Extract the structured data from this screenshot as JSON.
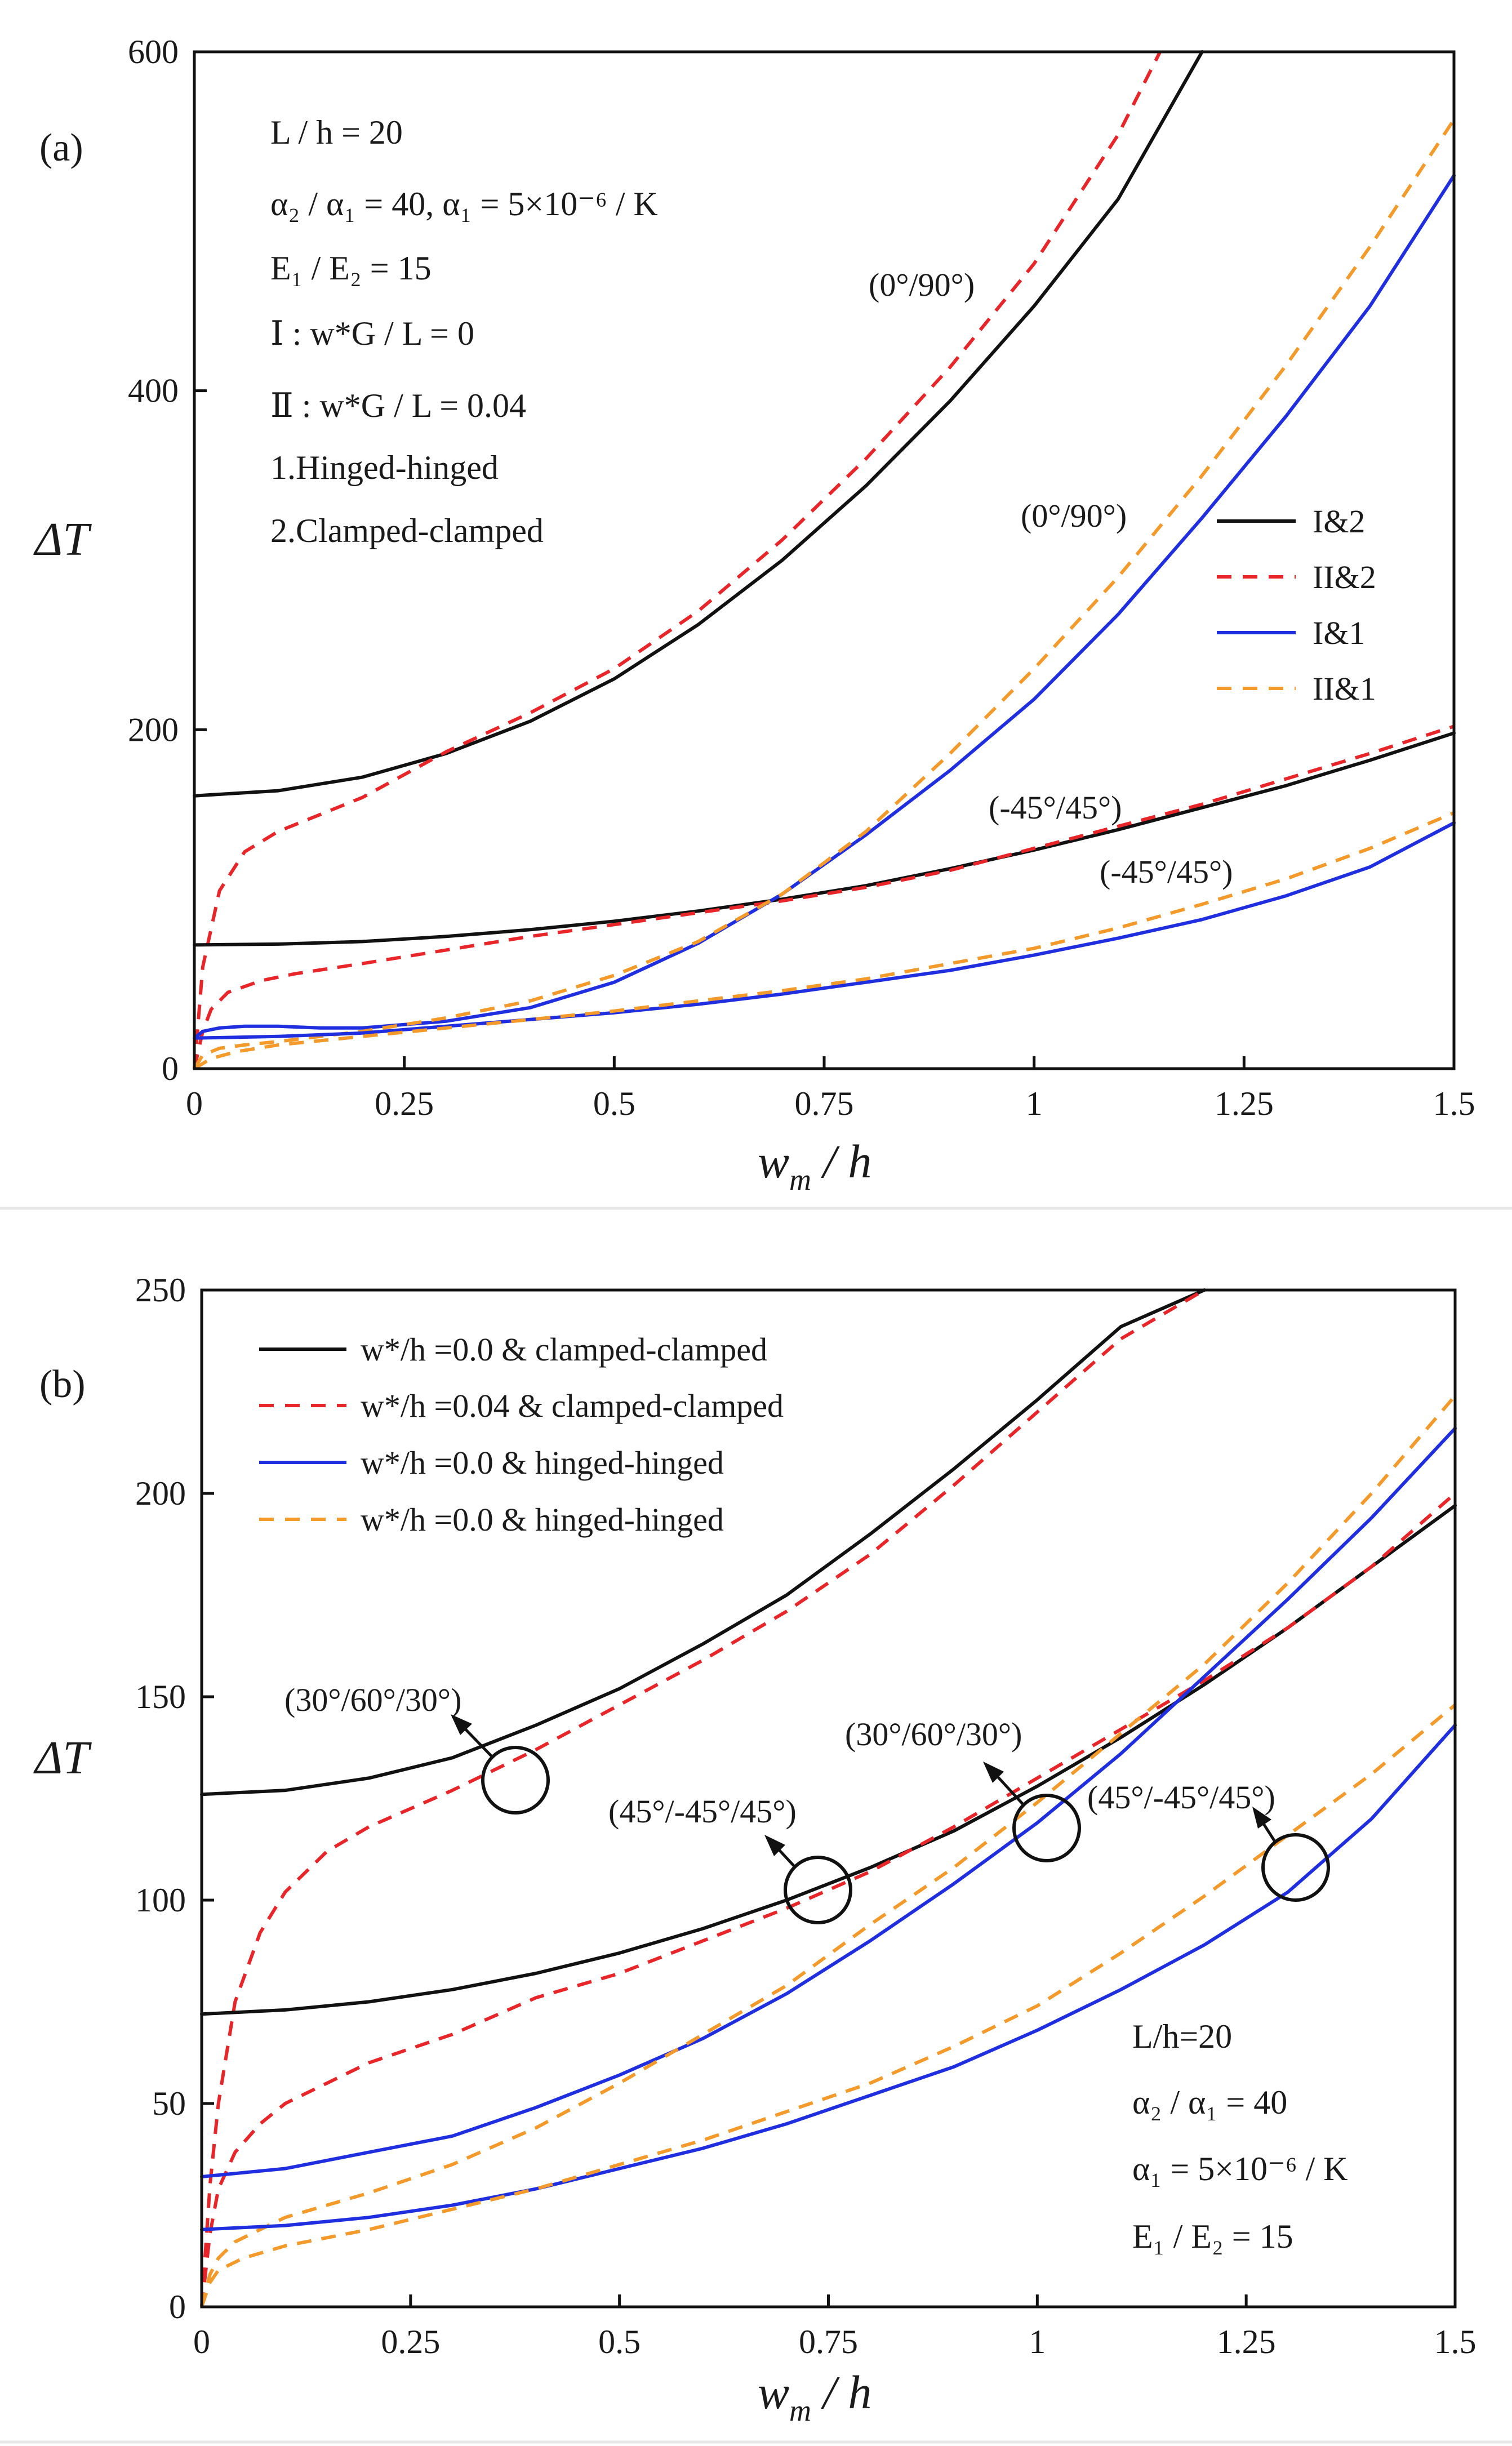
{
  "chart_data": [
    {
      "type": "line",
      "panel_label": "(a)",
      "xlabel": "w_m / h",
      "xlabel_main": "w",
      "xlabel_sub": "m",
      "xlabel_rest": " / h",
      "ylabel": "ΔT",
      "xlim": [
        0,
        1.5
      ],
      "ylim": [
        0,
        600
      ],
      "xticks": [
        0,
        0.25,
        0.5,
        0.75,
        1,
        1.25,
        1.5
      ],
      "xtick_labels": [
        "0",
        "0.25",
        "0.5",
        "0.75",
        "1",
        "1.25",
        "1.5"
      ],
      "yticks": [
        0,
        200,
        400,
        600
      ],
      "ytick_labels": [
        "0",
        "200",
        "400",
        "600"
      ],
      "info_lines": [
        "L / h = 20",
        "α₂ / α₁ = 40,  α₁ = 5×10⁻⁶ / K",
        "E₁ / E₂ = 15",
        "Ⅰ : w*G / L = 0",
        "Ⅱ : w*G / L = 0.04",
        "1.Hinged-hinged",
        "2.Clamped-clamped"
      ],
      "legend": [
        {
          "label": "I&2",
          "color": "#111111",
          "dash": "solid"
        },
        {
          "label": "II&2",
          "color": "#e8262a",
          "dash": "dashed"
        },
        {
          "label": "I&1",
          "color": "#1f2fe0",
          "dash": "solid"
        },
        {
          "label": "II&1",
          "color": "#f39a2a",
          "dash": "dashed"
        }
      ],
      "annotations": [
        {
          "text": "(0°/90°)",
          "x": 0.88,
          "y": 462
        },
        {
          "text": "(0°/90°)",
          "x": 1.05,
          "y": 320
        },
        {
          "text": "(-45°/45°)",
          "x": 1.08,
          "y": 152
        },
        {
          "text": "(-45°/45°)",
          "x": 1.22,
          "y": 113
        }
      ],
      "series": [
        {
          "name": "I&2 (0°/90°)",
          "color": "#111111",
          "dash": "solid",
          "x": [
            0,
            0.1,
            0.2,
            0.3,
            0.4,
            0.5,
            0.6,
            0.7,
            0.8,
            0.9,
            1.0,
            1.1,
            1.2
          ],
          "y": [
            161,
            164,
            172,
            186,
            205,
            230,
            262,
            300,
            344,
            394,
            450,
            513,
            600
          ]
        },
        {
          "name": "II&2 (0°/90°)",
          "color": "#e8262a",
          "dash": "dashed",
          "x": [
            0,
            0.01,
            0.03,
            0.06,
            0.1,
            0.15,
            0.2,
            0.3,
            0.4,
            0.5,
            0.6,
            0.7,
            0.8,
            0.9,
            1.0,
            1.1,
            1.15
          ],
          "y": [
            0,
            60,
            105,
            128,
            140,
            150,
            160,
            187,
            210,
            236,
            270,
            312,
            360,
            414,
            475,
            551,
            600
          ]
        },
        {
          "name": "I&2 (-45°/45°)",
          "color": "#111111",
          "dash": "solid",
          "x": [
            0,
            0.1,
            0.2,
            0.3,
            0.4,
            0.5,
            0.6,
            0.7,
            0.8,
            0.9,
            1.0,
            1.1,
            1.2,
            1.3,
            1.4,
            1.5
          ],
          "y": [
            73,
            73.5,
            75,
            78,
            82,
            87,
            93,
            100,
            108,
            118,
            129,
            141,
            154,
            167,
            182,
            198
          ]
        },
        {
          "name": "II&2 (-45°/45°)",
          "color": "#e8262a",
          "dash": "dashed",
          "x": [
            0,
            0.01,
            0.02,
            0.04,
            0.08,
            0.12,
            0.2,
            0.3,
            0.4,
            0.5,
            0.6,
            0.7,
            0.8,
            0.9,
            1.0,
            1.1,
            1.2,
            1.3,
            1.4,
            1.5
          ],
          "y": [
            0,
            22,
            35,
            45,
            52,
            56,
            62,
            70,
            78,
            85,
            92,
            99,
            107,
            117,
            130,
            143,
            156,
            171,
            186,
            202
          ]
        },
        {
          "name": "I&1 (0°/90°)",
          "color": "#1f2fe0",
          "dash": "solid",
          "x": [
            0,
            0.01,
            0.03,
            0.06,
            0.1,
            0.15,
            0.2,
            0.3,
            0.4,
            0.5,
            0.6,
            0.7,
            0.8,
            0.9,
            1.0,
            1.1,
            1.2,
            1.3,
            1.4,
            1.5
          ],
          "y": [
            18,
            22,
            24,
            25,
            25,
            24,
            24,
            28,
            36,
            51,
            74,
            103,
            138,
            176,
            218,
            268,
            325,
            385,
            450,
            527
          ]
        },
        {
          "name": "II&1 (0°/90°)",
          "color": "#f39a2a",
          "dash": "dashed",
          "x": [
            0,
            0.01,
            0.03,
            0.06,
            0.1,
            0.15,
            0.2,
            0.3,
            0.4,
            0.5,
            0.6,
            0.7,
            0.8,
            0.9,
            1.0,
            1.1,
            1.2,
            1.3,
            1.4,
            1.5
          ],
          "y": [
            0,
            8,
            12,
            14,
            16,
            19,
            22,
            30,
            40,
            55,
            75,
            103,
            140,
            186,
            236,
            290,
            350,
            415,
            485,
            560
          ]
        },
        {
          "name": "I&1 (-45°/45°)",
          "color": "#1f2fe0",
          "dash": "solid",
          "x": [
            0,
            0.1,
            0.2,
            0.3,
            0.4,
            0.5,
            0.6,
            0.7,
            0.8,
            0.9,
            1.0,
            1.1,
            1.2,
            1.3,
            1.4,
            1.5
          ],
          "y": [
            18,
            19,
            21,
            25,
            29,
            33,
            38,
            44,
            51,
            58,
            67,
            77,
            88,
            102,
            119,
            145
          ]
        },
        {
          "name": "II&1 (-45°/45°)",
          "color": "#f39a2a",
          "dash": "dashed",
          "x": [
            0,
            0.02,
            0.05,
            0.1,
            0.2,
            0.3,
            0.4,
            0.5,
            0.6,
            0.7,
            0.8,
            0.9,
            1.0,
            1.1,
            1.2,
            1.3,
            1.4,
            1.5
          ],
          "y": [
            0,
            6,
            10,
            14,
            19,
            24,
            29,
            34,
            40,
            46,
            53,
            62,
            71,
            83,
            97,
            112,
            130,
            151
          ]
        }
      ]
    },
    {
      "type": "line",
      "panel_label": "(b)",
      "xlabel": "w_m / h",
      "xlabel_main": "w",
      "xlabel_sub": "m",
      "xlabel_rest": " / h",
      "ylabel": "ΔT",
      "xlim": [
        0,
        1.5
      ],
      "ylim": [
        0,
        250
      ],
      "xticks": [
        0,
        0.25,
        0.5,
        0.75,
        1,
        1.25,
        1.5
      ],
      "xtick_labels": [
        "0",
        "0.25",
        "0.5",
        "0.75",
        "1",
        "1.25",
        "1.5"
      ],
      "yticks": [
        0,
        50,
        100,
        150,
        200,
        250
      ],
      "ytick_labels": [
        "0",
        "50",
        "100",
        "150",
        "200",
        "250"
      ],
      "info_lines": [
        "L/h=20",
        "α₂ / α₁ = 40",
        "α₁ = 5×10⁻⁶ / K",
        "E₁ / E₂ = 15"
      ],
      "legend": [
        {
          "label": "w*/h =0.0 & clamped-clamped",
          "color": "#111111",
          "dash": "solid"
        },
        {
          "label": "w*/h =0.04 & clamped-clamped",
          "color": "#e8262a",
          "dash": "dashed"
        },
        {
          "label": "w*/h =0.0 & hinged-hinged",
          "color": "#1f2fe0",
          "dash": "solid"
        },
        {
          "label": "w*/h =0.0 & hinged-hinged",
          "color": "#f39a2a",
          "dash": "dashed"
        }
      ],
      "annotations": [
        {
          "text": "(30°/60°/30°)",
          "x": 0.1,
          "y": 143
        },
        {
          "text": "(45°/-45°/45°)",
          "x": 0.48,
          "y": 118
        },
        {
          "text": "(30°/60°/30°)",
          "x": 0.76,
          "y": 134
        },
        {
          "text": "(45°/-45°/45°)",
          "x": 1.06,
          "y": 119
        }
      ],
      "series": [
        {
          "name": "clamped w*=0 (30°/60°/30°)",
          "color": "#111111",
          "dash": "solid",
          "x": [
            0,
            0.1,
            0.2,
            0.3,
            0.4,
            0.5,
            0.6,
            0.7,
            0.8,
            0.9,
            1.0,
            1.1,
            1.2
          ],
          "y": [
            126,
            127,
            130,
            135,
            143,
            152,
            163,
            175,
            190,
            206,
            223,
            241,
            250
          ]
        },
        {
          "name": "clamped w*=0.04 (30°/60°/30°)",
          "color": "#e8262a",
          "dash": "dashed",
          "x": [
            0,
            0.01,
            0.02,
            0.04,
            0.07,
            0.1,
            0.15,
            0.2,
            0.3,
            0.4,
            0.5,
            0.6,
            0.7,
            0.8,
            0.9,
            1.0,
            1.1,
            1.2
          ],
          "y": [
            0,
            30,
            50,
            75,
            92,
            102,
            112,
            118,
            127,
            137,
            148,
            159,
            171,
            185,
            202,
            220,
            238,
            250
          ]
        },
        {
          "name": "clamped w*=0 (45°/-45°/45°)",
          "color": "#111111",
          "dash": "solid",
          "x": [
            0,
            0.1,
            0.2,
            0.3,
            0.4,
            0.5,
            0.6,
            0.7,
            0.8,
            0.9,
            1.0,
            1.1,
            1.2,
            1.3,
            1.4,
            1.5
          ],
          "y": [
            72,
            73,
            75,
            78,
            82,
            87,
            93,
            100,
            108,
            117,
            128,
            140,
            153,
            167,
            182,
            197
          ]
        },
        {
          "name": "clamped w*=0.04 (45°/-45°/45°)",
          "color": "#e8262a",
          "dash": "dashed",
          "x": [
            0,
            0.01,
            0.02,
            0.04,
            0.07,
            0.1,
            0.15,
            0.2,
            0.3,
            0.4,
            0.5,
            0.6,
            0.7,
            0.8,
            0.9,
            1.0,
            1.1,
            1.2,
            1.3,
            1.4,
            1.5
          ],
          "y": [
            0,
            18,
            29,
            38,
            45,
            50,
            55,
            60,
            67,
            76,
            82,
            90,
            98,
            107,
            118,
            130,
            142,
            154,
            167,
            182,
            200
          ]
        },
        {
          "name": "hinged w*=0 (30°/60°/30°)",
          "color": "#1f2fe0",
          "dash": "solid",
          "x": [
            0,
            0.1,
            0.2,
            0.3,
            0.4,
            0.5,
            0.6,
            0.7,
            0.8,
            0.9,
            1.0,
            1.1,
            1.2,
            1.3,
            1.4,
            1.5
          ],
          "y": [
            32,
            34,
            38,
            42,
            49,
            57,
            66,
            77,
            90,
            104,
            119,
            136,
            155,
            174,
            194,
            216
          ]
        },
        {
          "name": "hinged dashed (30°/60°/30°)",
          "color": "#f39a2a",
          "dash": "dashed",
          "x": [
            0,
            0.01,
            0.02,
            0.04,
            0.07,
            0.1,
            0.2,
            0.3,
            0.4,
            0.5,
            0.6,
            0.7,
            0.8,
            0.9,
            1.0,
            1.1,
            1.2,
            1.3,
            1.4,
            1.5
          ],
          "y": [
            0,
            8,
            12,
            16,
            19,
            22,
            28,
            35,
            44,
            55,
            67,
            79,
            94,
            108,
            124,
            141,
            158,
            178,
            200,
            224
          ]
        },
        {
          "name": "hinged w*=0 (45°/-45°/45°)",
          "color": "#1f2fe0",
          "dash": "solid",
          "x": [
            0,
            0.1,
            0.2,
            0.3,
            0.4,
            0.5,
            0.6,
            0.7,
            0.8,
            0.9,
            1.0,
            1.1,
            1.2,
            1.3,
            1.4,
            1.5
          ],
          "y": [
            19,
            20,
            22,
            25,
            29,
            34,
            39,
            45,
            52,
            59,
            68,
            78,
            89,
            102,
            120,
            143
          ]
        },
        {
          "name": "hinged dashed (45°/-45°/45°)",
          "color": "#f39a2a",
          "dash": "dashed",
          "x": [
            0,
            0.01,
            0.02,
            0.05,
            0.1,
            0.2,
            0.3,
            0.4,
            0.5,
            0.6,
            0.7,
            0.8,
            0.9,
            1.0,
            1.1,
            1.2,
            1.3,
            1.4,
            1.5
          ],
          "y": [
            0,
            6,
            9,
            12,
            15,
            19,
            24,
            29,
            35,
            41,
            48,
            55,
            64,
            74,
            87,
            101,
            116,
            131,
            148
          ]
        }
      ]
    }
  ]
}
